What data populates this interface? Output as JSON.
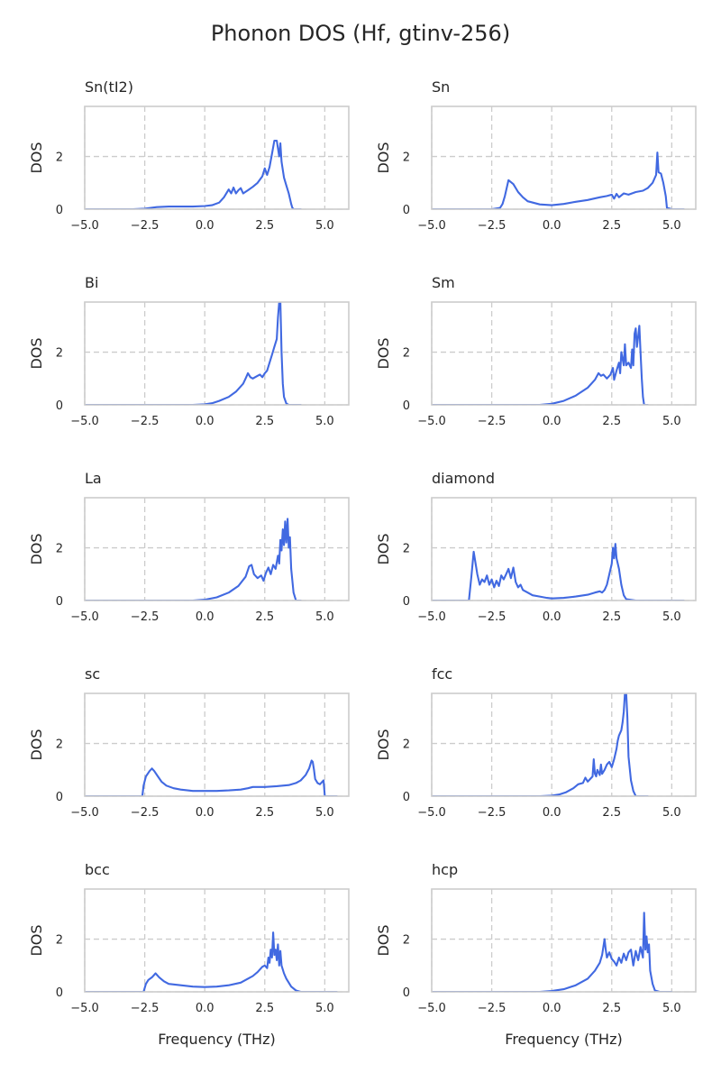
{
  "figure": {
    "title": "Phonon DOS (Hf, gtinv-256)"
  },
  "chart_data": [
    {
      "type": "line",
      "title": "Sn(tI2)",
      "ylabel": "DOS",
      "xlabel": "",
      "xlim": [
        -5.0,
        6.0
      ],
      "ylim": [
        0,
        3.9
      ],
      "xticks": [
        "−5.0",
        "−2.5",
        "0.0",
        "2.5",
        "5.0"
      ],
      "yticks": [
        "0",
        "2"
      ],
      "grid": true,
      "color": "#4169e1",
      "series": [
        {
          "x": [
            -5.0,
            -3.0,
            -2.5,
            -2.0,
            -1.5,
            -1.0,
            -0.5,
            0.0,
            0.3,
            0.6,
            0.8,
            1.0,
            1.1,
            1.2,
            1.3,
            1.4,
            1.5,
            1.6,
            1.8,
            2.0,
            2.2,
            2.4,
            2.5,
            2.6,
            2.7,
            2.8,
            2.9,
            3.0,
            3.1,
            3.15,
            3.2,
            3.3,
            3.4,
            3.5,
            3.6,
            3.65,
            3.7,
            4.0
          ],
          "y": [
            0.0,
            0.0,
            0.02,
            0.08,
            0.1,
            0.1,
            0.1,
            0.12,
            0.15,
            0.25,
            0.45,
            0.75,
            0.6,
            0.82,
            0.6,
            0.72,
            0.8,
            0.6,
            0.72,
            0.85,
            1.0,
            1.25,
            1.55,
            1.3,
            1.6,
            2.1,
            2.6,
            2.6,
            2.0,
            2.5,
            1.8,
            1.2,
            0.9,
            0.6,
            0.2,
            0.05,
            0.0,
            0.0
          ]
        }
      ]
    },
    {
      "type": "line",
      "title": "Sn",
      "ylabel": "DOS",
      "xlabel": "",
      "xlim": [
        -5.0,
        6.0
      ],
      "ylim": [
        0,
        3.9
      ],
      "xticks": [
        "−5.0",
        "−2.5",
        "0.0",
        "2.5",
        "5.0"
      ],
      "yticks": [
        "0",
        "2"
      ],
      "grid": true,
      "color": "#4169e1",
      "series": [
        {
          "x": [
            -5.0,
            -2.5,
            -2.15,
            -2.05,
            -1.95,
            -1.8,
            -1.6,
            -1.4,
            -1.2,
            -1.0,
            -0.5,
            0.0,
            0.5,
            1.0,
            1.5,
            2.0,
            2.3,
            2.5,
            2.6,
            2.7,
            2.8,
            3.0,
            3.2,
            3.5,
            3.8,
            4.0,
            4.2,
            4.35,
            4.4,
            4.45,
            4.55,
            4.65,
            4.75,
            4.8,
            5.0,
            5.5
          ],
          "y": [
            0.0,
            0.0,
            0.05,
            0.2,
            0.5,
            1.1,
            0.95,
            0.65,
            0.45,
            0.3,
            0.18,
            0.15,
            0.2,
            0.28,
            0.35,
            0.45,
            0.5,
            0.55,
            0.4,
            0.58,
            0.45,
            0.6,
            0.55,
            0.65,
            0.7,
            0.8,
            1.0,
            1.3,
            2.15,
            1.4,
            1.35,
            1.0,
            0.5,
            0.05,
            0.0,
            0.0
          ]
        }
      ]
    },
    {
      "type": "line",
      "title": "Bi",
      "ylabel": "DOS",
      "xlabel": "",
      "xlim": [
        -5.0,
        6.0
      ],
      "ylim": [
        0,
        3.9
      ],
      "xticks": [
        "−5.0",
        "−2.5",
        "0.0",
        "2.5",
        "5.0"
      ],
      "yticks": [
        "0",
        "2"
      ],
      "grid": true,
      "color": "#4169e1",
      "series": [
        {
          "x": [
            -5.0,
            -0.5,
            0.0,
            0.3,
            0.6,
            1.0,
            1.3,
            1.6,
            1.7,
            1.8,
            1.9,
            2.0,
            2.1,
            2.2,
            2.3,
            2.4,
            2.5,
            2.6,
            2.7,
            2.8,
            2.9,
            3.0,
            3.05,
            3.1,
            3.15,
            3.2,
            3.25,
            3.3,
            3.4,
            3.5,
            4.0
          ],
          "y": [
            0.0,
            0.0,
            0.02,
            0.06,
            0.15,
            0.3,
            0.5,
            0.8,
            1.0,
            1.2,
            1.05,
            1.0,
            1.05,
            1.1,
            1.15,
            1.05,
            1.2,
            1.3,
            1.6,
            1.9,
            2.2,
            2.5,
            3.3,
            3.9,
            3.9,
            2.0,
            0.8,
            0.3,
            0.05,
            0.0,
            0.0
          ]
        }
      ]
    },
    {
      "type": "line",
      "title": "Sm",
      "ylabel": "DOS",
      "xlabel": "",
      "xlim": [
        -5.0,
        6.0
      ],
      "ylim": [
        0,
        3.9
      ],
      "xticks": [
        "−5.0",
        "−2.5",
        "0.0",
        "2.5",
        "5.0"
      ],
      "yticks": [
        "0",
        "2"
      ],
      "grid": true,
      "color": "#4169e1",
      "series": [
        {
          "x": [
            -5.0,
            -0.5,
            0.0,
            0.5,
            1.0,
            1.5,
            1.8,
            1.95,
            2.05,
            2.15,
            2.3,
            2.45,
            2.55,
            2.6,
            2.7,
            2.8,
            2.85,
            2.9,
            3.0,
            3.05,
            3.1,
            3.2,
            3.3,
            3.35,
            3.4,
            3.45,
            3.5,
            3.55,
            3.6,
            3.65,
            3.7,
            3.75,
            3.8,
            3.85,
            4.0
          ],
          "y": [
            0.0,
            0.0,
            0.04,
            0.15,
            0.35,
            0.65,
            0.95,
            1.2,
            1.1,
            1.15,
            1.0,
            1.15,
            1.4,
            0.95,
            1.3,
            1.6,
            1.2,
            2.0,
            1.5,
            2.3,
            1.5,
            1.6,
            1.4,
            2.1,
            1.5,
            2.7,
            2.9,
            2.2,
            2.6,
            3.0,
            2.0,
            1.0,
            0.3,
            0.0,
            0.0
          ]
        }
      ]
    },
    {
      "type": "line",
      "title": "La",
      "ylabel": "DOS",
      "xlabel": "",
      "xlim": [
        -5.0,
        6.0
      ],
      "ylim": [
        0,
        3.9
      ],
      "xticks": [
        "−5.0",
        "−2.5",
        "0.0",
        "2.5",
        "5.0"
      ],
      "yticks": [
        "0",
        "2"
      ],
      "grid": true,
      "color": "#4169e1",
      "series": [
        {
          "x": [
            -5.0,
            -0.5,
            0.0,
            0.5,
            1.0,
            1.4,
            1.7,
            1.85,
            1.95,
            2.05,
            2.2,
            2.35,
            2.45,
            2.55,
            2.65,
            2.75,
            2.85,
            2.95,
            3.05,
            3.1,
            3.15,
            3.2,
            3.25,
            3.3,
            3.35,
            3.4,
            3.45,
            3.5,
            3.55,
            3.6,
            3.7,
            3.8,
            4.0
          ],
          "y": [
            0.0,
            0.0,
            0.03,
            0.12,
            0.3,
            0.55,
            0.9,
            1.3,
            1.35,
            1.0,
            0.85,
            0.95,
            0.75,
            1.05,
            1.25,
            1.0,
            1.35,
            1.2,
            1.7,
            1.4,
            2.3,
            1.9,
            2.7,
            2.1,
            3.0,
            2.2,
            3.1,
            2.0,
            2.4,
            1.2,
            0.3,
            0.0,
            0.0
          ]
        }
      ]
    },
    {
      "type": "line",
      "title": "diamond",
      "ylabel": "DOS",
      "xlabel": "",
      "xlim": [
        -5.0,
        6.0
      ],
      "ylim": [
        0,
        3.9
      ],
      "xticks": [
        "−5.0",
        "−2.5",
        "0.0",
        "2.5",
        "5.0"
      ],
      "yticks": [
        "0",
        "2"
      ],
      "grid": true,
      "color": "#4169e1",
      "series": [
        {
          "x": [
            -5.0,
            -4.0,
            -3.45,
            -3.35,
            -3.25,
            -3.1,
            -3.0,
            -2.9,
            -2.8,
            -2.7,
            -2.6,
            -2.5,
            -2.4,
            -2.3,
            -2.2,
            -2.1,
            -2.0,
            -1.9,
            -1.8,
            -1.7,
            -1.6,
            -1.5,
            -1.4,
            -1.3,
            -1.2,
            -1.0,
            -0.8,
            -0.5,
            -0.2,
            0.0,
            0.5,
            1.0,
            1.5,
            1.8,
            2.0,
            2.1,
            2.2,
            2.3,
            2.4,
            2.5,
            2.55,
            2.6,
            2.65,
            2.7,
            2.8,
            2.9,
            3.0,
            3.1,
            3.5,
            4.0,
            5.5
          ],
          "y": [
            0.0,
            0.0,
            0.0,
            0.9,
            1.85,
            1.0,
            0.6,
            0.8,
            0.7,
            0.95,
            0.6,
            0.8,
            0.5,
            0.75,
            0.55,
            0.95,
            0.8,
            1.0,
            1.2,
            0.85,
            1.25,
            0.7,
            0.5,
            0.6,
            0.4,
            0.3,
            0.2,
            0.15,
            0.1,
            0.08,
            0.1,
            0.15,
            0.22,
            0.3,
            0.35,
            0.3,
            0.4,
            0.6,
            1.0,
            1.4,
            2.0,
            1.6,
            2.15,
            1.6,
            1.2,
            0.6,
            0.2,
            0.05,
            0.0,
            0.0,
            0.0
          ]
        }
      ]
    },
    {
      "type": "line",
      "title": "sc",
      "ylabel": "DOS",
      "xlabel": "",
      "xlim": [
        -5.0,
        6.0
      ],
      "ylim": [
        0,
        3.9
      ],
      "xticks": [
        "−5.0",
        "−2.5",
        "0.0",
        "2.5",
        "5.0"
      ],
      "yticks": [
        "0",
        "2"
      ],
      "grid": true,
      "color": "#4169e1",
      "series": [
        {
          "x": [
            -5.0,
            -3.5,
            -2.6,
            -2.55,
            -2.45,
            -2.3,
            -2.2,
            -2.1,
            -1.95,
            -1.8,
            -1.6,
            -1.3,
            -1.0,
            -0.5,
            0.0,
            0.5,
            1.0,
            1.5,
            1.8,
            2.0,
            2.5,
            3.0,
            3.5,
            3.8,
            4.0,
            4.2,
            4.35,
            4.45,
            4.5,
            4.55,
            4.6,
            4.7,
            4.8,
            4.9,
            4.95,
            5.0,
            5.5
          ],
          "y": [
            0.0,
            0.0,
            0.0,
            0.4,
            0.75,
            0.95,
            1.05,
            0.95,
            0.75,
            0.55,
            0.4,
            0.3,
            0.25,
            0.2,
            0.2,
            0.2,
            0.22,
            0.25,
            0.3,
            0.35,
            0.35,
            0.38,
            0.42,
            0.5,
            0.6,
            0.8,
            1.05,
            1.35,
            1.3,
            1.0,
            0.65,
            0.5,
            0.45,
            0.55,
            0.6,
            0.0,
            0.0
          ]
        }
      ]
    },
    {
      "type": "line",
      "title": "fcc",
      "ylabel": "DOS",
      "xlabel": "",
      "xlim": [
        -5.0,
        6.0
      ],
      "ylim": [
        0,
        3.9
      ],
      "xticks": [
        "−5.0",
        "−2.5",
        "0.0",
        "2.5",
        "5.0"
      ],
      "yticks": [
        "0",
        "2"
      ],
      "grid": true,
      "color": "#4169e1",
      "series": [
        {
          "x": [
            -5.0,
            -0.5,
            0.0,
            0.3,
            0.6,
            0.9,
            1.1,
            1.3,
            1.4,
            1.5,
            1.6,
            1.7,
            1.75,
            1.8,
            1.85,
            1.9,
            2.0,
            2.05,
            2.1,
            2.2,
            2.3,
            2.4,
            2.5,
            2.6,
            2.7,
            2.75,
            2.8,
            2.9,
            2.95,
            3.0,
            3.05,
            3.1,
            3.15,
            3.2,
            3.3,
            3.4,
            3.5,
            4.0
          ],
          "y": [
            0.0,
            0.0,
            0.02,
            0.06,
            0.15,
            0.3,
            0.45,
            0.5,
            0.7,
            0.55,
            0.65,
            0.75,
            1.4,
            0.85,
            0.75,
            1.0,
            0.8,
            1.2,
            0.85,
            1.0,
            1.2,
            1.3,
            1.1,
            1.4,
            1.8,
            2.1,
            2.3,
            2.5,
            2.8,
            3.2,
            3.9,
            3.9,
            3.0,
            1.5,
            0.6,
            0.2,
            0.0,
            0.0
          ]
        }
      ]
    },
    {
      "type": "line",
      "title": "bcc",
      "ylabel": "DOS",
      "xlabel": "Frequency (THz)",
      "xlim": [
        -5.0,
        6.0
      ],
      "ylim": [
        0,
        3.9
      ],
      "xticks": [
        "−5.0",
        "−2.5",
        "0.0",
        "2.5",
        "5.0"
      ],
      "yticks": [
        "0",
        "2"
      ],
      "grid": true,
      "color": "#4169e1",
      "series": [
        {
          "x": [
            -5.0,
            -3.5,
            -2.55,
            -2.45,
            -2.35,
            -2.2,
            -2.05,
            -1.9,
            -1.7,
            -1.5,
            -1.0,
            -0.5,
            0.0,
            0.5,
            1.0,
            1.5,
            1.8,
            2.0,
            2.2,
            2.4,
            2.5,
            2.6,
            2.65,
            2.7,
            2.75,
            2.8,
            2.85,
            2.9,
            2.95,
            3.0,
            3.05,
            3.1,
            3.15,
            3.2,
            3.3,
            3.4,
            3.6,
            3.8,
            4.0,
            5.5
          ],
          "y": [
            0.0,
            0.0,
            0.0,
            0.3,
            0.45,
            0.55,
            0.7,
            0.55,
            0.4,
            0.3,
            0.25,
            0.2,
            0.18,
            0.2,
            0.25,
            0.35,
            0.5,
            0.6,
            0.75,
            0.95,
            1.0,
            0.9,
            1.3,
            1.1,
            1.6,
            1.3,
            2.25,
            1.4,
            1.6,
            1.2,
            1.8,
            1.0,
            1.55,
            1.0,
            0.7,
            0.5,
            0.2,
            0.05,
            0.0,
            0.0
          ]
        }
      ]
    },
    {
      "type": "line",
      "title": "hcp",
      "ylabel": "DOS",
      "xlabel": "Frequency (THz)",
      "xlim": [
        -5.0,
        6.0
      ],
      "ylim": [
        0,
        3.9
      ],
      "xticks": [
        "−5.0",
        "−2.5",
        "0.0",
        "2.5",
        "5.0"
      ],
      "yticks": [
        "0",
        "2"
      ],
      "grid": true,
      "color": "#4169e1",
      "series": [
        {
          "x": [
            -5.0,
            -0.5,
            0.0,
            0.5,
            1.0,
            1.5,
            1.8,
            2.0,
            2.1,
            2.2,
            2.25,
            2.3,
            2.4,
            2.5,
            2.6,
            2.7,
            2.8,
            2.9,
            3.0,
            3.1,
            3.2,
            3.3,
            3.4,
            3.5,
            3.6,
            3.7,
            3.8,
            3.85,
            3.9,
            3.95,
            4.0,
            4.05,
            4.1,
            4.2,
            4.3,
            4.5,
            5.0
          ],
          "y": [
            0.0,
            0.0,
            0.03,
            0.1,
            0.25,
            0.5,
            0.8,
            1.1,
            1.4,
            2.0,
            1.6,
            1.3,
            1.5,
            1.25,
            1.15,
            1.0,
            1.3,
            1.1,
            1.45,
            1.2,
            1.5,
            1.6,
            1.0,
            1.55,
            1.2,
            1.7,
            1.3,
            3.0,
            1.6,
            2.1,
            1.5,
            1.8,
            0.8,
            0.3,
            0.05,
            0.0,
            0.0
          ]
        }
      ]
    }
  ]
}
